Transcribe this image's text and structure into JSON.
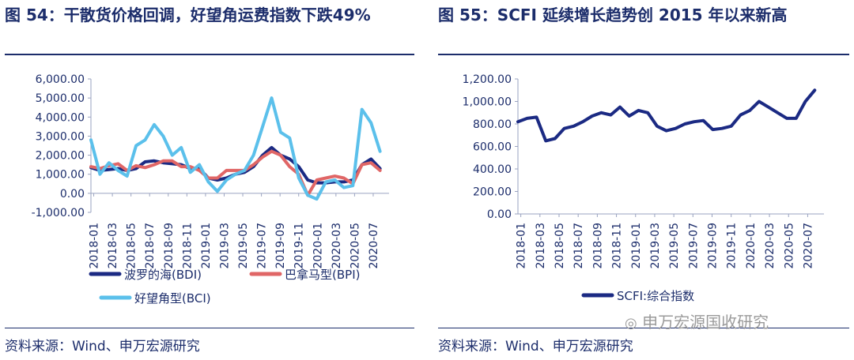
{
  "left": {
    "title": "图 54：干散货价格回调，好望角运费指数下跌49%",
    "source": "资料来源：Wind、申万宏源研究"
  },
  "right": {
    "title": "图 55：SCFI 延续增长趋势创 2015 年以来新高",
    "source": "资料来源：Wind、申万宏源研究"
  },
  "watermark": "申万宏源国收研究",
  "chart_data": [
    {
      "type": "line",
      "title": "",
      "x_ticks": [
        "2018-01",
        "2018-03",
        "2018-05",
        "2018-07",
        "2018-09",
        "2018-11",
        "2019-01",
        "2019-03",
        "2019-05",
        "2019-07",
        "2019-09",
        "2019-11",
        "2020-01",
        "2020-03",
        "2020-05",
        "2020-07"
      ],
      "y_ticks": [
        "-1,000.00",
        "0.00",
        "1,000.00",
        "2,000.00",
        "3,000.00",
        "4,000.00",
        "5,000.00",
        "6,000.00"
      ],
      "ylim": [
        -1000,
        6000
      ],
      "xlim": [
        0,
        33
      ],
      "legend_position": "bottom",
      "series": [
        {
          "name": "波罗的海(BDI)",
          "color": "#1b2a83",
          "x": [
            0,
            1,
            2,
            3,
            4,
            5,
            6,
            7,
            8,
            9,
            10,
            11,
            12,
            13,
            14,
            15,
            16,
            17,
            18,
            19,
            20,
            21,
            22,
            23,
            24,
            25,
            26,
            27,
            28,
            29,
            30,
            31,
            32
          ],
          "y": [
            1350,
            1200,
            1250,
            1300,
            1200,
            1300,
            1650,
            1700,
            1600,
            1550,
            1500,
            1300,
            1300,
            800,
            700,
            800,
            1000,
            1100,
            1400,
            2000,
            2400,
            2000,
            1800,
            1400,
            700,
            550,
            550,
            600,
            600,
            700,
            1500,
            1800,
            1300
          ]
        },
        {
          "name": "巴拿马型(BPI)",
          "color": "#e06666",
          "x": [
            0,
            1,
            2,
            3,
            4,
            5,
            6,
            7,
            8,
            9,
            10,
            11,
            12,
            13,
            14,
            15,
            16,
            17,
            18,
            19,
            20,
            21,
            22,
            23,
            24,
            25,
            26,
            27,
            28,
            29,
            30,
            31,
            32
          ],
          "y": [
            1400,
            1300,
            1450,
            1550,
            1200,
            1450,
            1350,
            1500,
            1700,
            1700,
            1400,
            1400,
            1200,
            800,
            800,
            1200,
            1200,
            1200,
            1500,
            1900,
            2200,
            2000,
            1400,
            1000,
            -100,
            700,
            800,
            900,
            800,
            500,
            1500,
            1600,
            1200
          ]
        },
        {
          "name": "好望角型(BCI)",
          "color": "#5bc0eb",
          "x": [
            0,
            1,
            2,
            3,
            4,
            5,
            6,
            7,
            8,
            9,
            10,
            11,
            12,
            13,
            14,
            15,
            16,
            17,
            18,
            19,
            20,
            21,
            22,
            23,
            24,
            25,
            26,
            27,
            28,
            29,
            30,
            31,
            32
          ],
          "y": [
            2800,
            1000,
            1600,
            1200,
            900,
            2500,
            2800,
            3600,
            3000,
            2000,
            2400,
            1100,
            1500,
            600,
            100,
            700,
            1000,
            1200,
            2000,
            3500,
            5000,
            3200,
            2900,
            800,
            -100,
            -300,
            600,
            700,
            300,
            400,
            4400,
            3700,
            2200
          ]
        }
      ]
    },
    {
      "type": "line",
      "title": "",
      "x_ticks": [
        "2018-01",
        "2018-03",
        "2018-05",
        "2018-07",
        "2018-09",
        "2018-11",
        "2019-01",
        "2019-03",
        "2019-05",
        "2019-07",
        "2019-09",
        "2019-11",
        "2020-01",
        "2020-03",
        "2020-05",
        "2020-07"
      ],
      "y_ticks": [
        "0.00",
        "200.00",
        "400.00",
        "600.00",
        "800.00",
        "1,000.00",
        "1,200.00"
      ],
      "ylim": [
        0,
        1200
      ],
      "xlim": [
        0,
        33
      ],
      "legend_position": "bottom",
      "series": [
        {
          "name": "SCFI:综合指数",
          "color": "#1b2a83",
          "x": [
            0,
            1,
            2,
            3,
            4,
            5,
            6,
            7,
            8,
            9,
            10,
            11,
            12,
            13,
            14,
            15,
            16,
            17,
            18,
            19,
            20,
            21,
            22,
            23,
            24,
            25,
            26,
            27,
            28,
            29,
            30,
            31,
            32
          ],
          "y": [
            820,
            850,
            860,
            650,
            670,
            760,
            780,
            820,
            870,
            900,
            880,
            950,
            870,
            920,
            900,
            780,
            740,
            760,
            800,
            820,
            830,
            750,
            760,
            780,
            880,
            920,
            1000,
            950,
            900,
            850,
            850,
            1000,
            1100
          ]
        }
      ]
    }
  ]
}
